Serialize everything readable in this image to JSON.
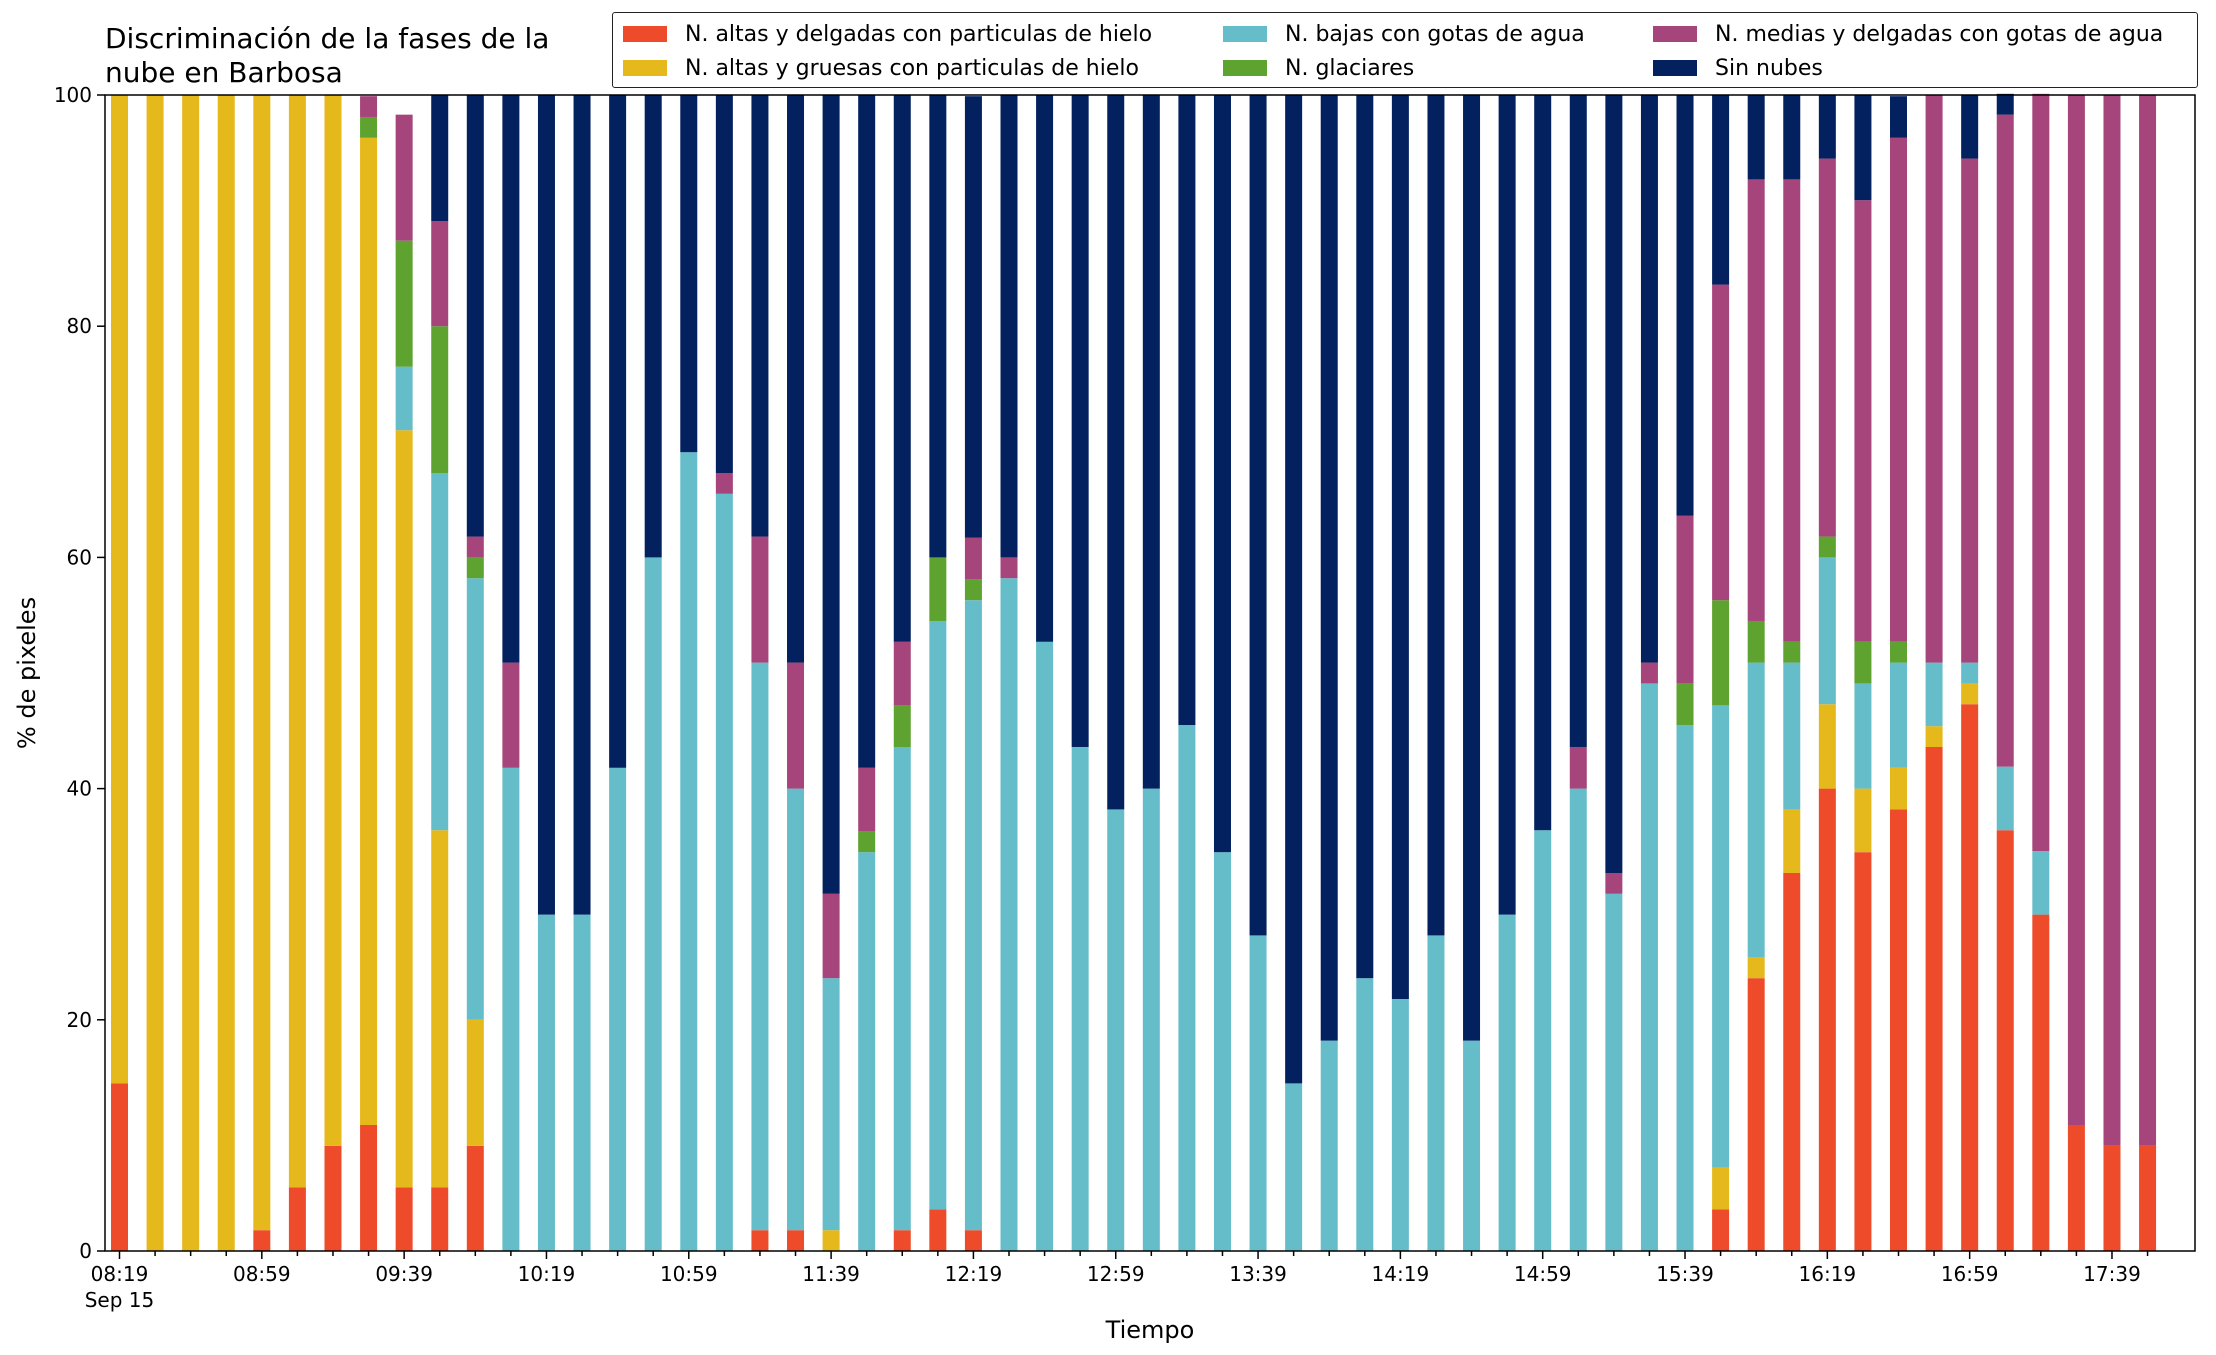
{
  "chart_data": {
    "type": "bar",
    "stacked": true,
    "title_lines": [
      "Discriminación de la fases de la",
      "nube en Barbosa"
    ],
    "xlabel": "Tiempo",
    "ylabel": "% de pixeles",
    "ylim": [
      0,
      100
    ],
    "yticks": [
      0,
      20,
      40,
      60,
      80,
      100
    ],
    "first_tick_sublabel": "Sep 15",
    "tick_labels": [
      "08:19",
      "08:59",
      "09:39",
      "10:19",
      "10:59",
      "11:39",
      "12:19",
      "12:59",
      "13:39",
      "14:19",
      "14:59",
      "15:39",
      "16:19",
      "16:59",
      "17:39"
    ],
    "grid": false,
    "legend_position": "top-right",
    "categories": [
      "08:19",
      "08:29",
      "08:39",
      "08:49",
      "08:59",
      "09:09",
      "09:19",
      "09:29",
      "09:39",
      "09:49",
      "09:59",
      "10:09",
      "10:19",
      "10:29",
      "10:39",
      "10:49",
      "10:59",
      "11:09",
      "11:19",
      "11:29",
      "11:39",
      "11:49",
      "11:59",
      "12:09",
      "12:19",
      "12:29",
      "12:39",
      "12:49",
      "12:59",
      "13:09",
      "13:19",
      "13:29",
      "13:39",
      "13:49",
      "13:59",
      "14:09",
      "14:19",
      "14:29",
      "14:39",
      "14:49",
      "14:59",
      "15:09",
      "15:19",
      "15:29",
      "15:39",
      "15:49",
      "15:59",
      "16:09",
      "16:19",
      "16:29",
      "16:39",
      "16:49",
      "16:59",
      "17:09",
      "17:19",
      "17:29",
      "17:39",
      "17:49"
    ],
    "series": [
      {
        "name": "N. altas y delgadas con particulas de hielo",
        "color": "#ee4b2b",
        "values": [
          14.5,
          0,
          0,
          0,
          1.8,
          5.5,
          9.1,
          10.9,
          5.5,
          5.5,
          9.1,
          0,
          0,
          0,
          0,
          0,
          0,
          0,
          1.8,
          1.8,
          0,
          0,
          1.8,
          3.6,
          1.8,
          0,
          0,
          0,
          0,
          0,
          0,
          0,
          0,
          0,
          0,
          0,
          0,
          0,
          0,
          0,
          0,
          0,
          0,
          0,
          0,
          3.6,
          23.6,
          32.7,
          40,
          34.5,
          38.2,
          43.6,
          47.3,
          36.4,
          29.1,
          10.9,
          9.1,
          9.1
        ]
      },
      {
        "name": "N. altas y gruesas con particulas de hielo",
        "color": "#e5b81b",
        "values": [
          85.5,
          100,
          100,
          100,
          98.2,
          94.5,
          90.9,
          85.4,
          65.5,
          30.9,
          10.9,
          0,
          0,
          0,
          0,
          0,
          0,
          0,
          0,
          0,
          1.8,
          0,
          0,
          0,
          0,
          0,
          0,
          0,
          0,
          0,
          0,
          0,
          0,
          0,
          0,
          0,
          0,
          0,
          0,
          0,
          0,
          0,
          0,
          0,
          0,
          3.6,
          1.8,
          5.5,
          7.3,
          5.5,
          3.6,
          1.8,
          1.8,
          0,
          0,
          0,
          0,
          0
        ]
      },
      {
        "name": "N. bajas con gotas de agua",
        "color": "#66bdca",
        "values": [
          0,
          0,
          0,
          0,
          0,
          0,
          0,
          0,
          5.5,
          30.9,
          38.2,
          41.8,
          29.1,
          29.1,
          41.8,
          60,
          69.1,
          65.5,
          49.1,
          38.2,
          21.8,
          34.5,
          41.8,
          50.9,
          54.5,
          58.2,
          52.7,
          43.6,
          38.2,
          40,
          45.5,
          34.5,
          27.3,
          14.5,
          18.2,
          23.6,
          21.8,
          27.3,
          18.2,
          29.1,
          36.4,
          40,
          30.9,
          49.1,
          45.5,
          40,
          25.5,
          12.7,
          12.7,
          9.1,
          9.1,
          5.5,
          1.8,
          5.5,
          5.5,
          0,
          0,
          0
        ]
      },
      {
        "name": "N. glaciares",
        "color": "#5ea22f",
        "values": [
          0,
          0,
          0,
          0,
          0,
          0,
          0,
          1.8,
          10.9,
          12.7,
          1.8,
          0,
          0,
          0,
          0,
          0,
          0,
          0,
          0,
          0,
          0,
          1.8,
          3.6,
          5.5,
          1.8,
          0,
          0,
          0,
          0,
          0,
          0,
          0,
          0,
          0,
          0,
          0,
          0,
          0,
          0,
          0,
          0,
          0,
          0,
          0,
          3.6,
          9.1,
          3.6,
          1.8,
          1.8,
          3.6,
          1.8,
          0,
          0,
          0,
          0,
          0,
          0,
          0
        ]
      },
      {
        "name": "N. medias y delgadas con gotas de agua",
        "color": "#a6457b",
        "values": [
          0,
          0,
          0,
          0,
          0,
          0,
          0,
          1.8,
          10.9,
          9.1,
          1.8,
          9.1,
          0,
          0,
          0,
          0,
          0,
          1.8,
          10.9,
          10.9,
          7.3,
          5.5,
          5.5,
          0,
          3.6,
          1.8,
          0,
          0,
          0,
          0,
          0,
          0,
          0,
          0,
          0,
          0,
          0,
          0,
          0,
          0,
          0,
          3.6,
          1.8,
          1.8,
          14.5,
          27.3,
          38.2,
          40,
          32.7,
          38.2,
          43.6,
          49.1,
          43.6,
          56.4,
          65.5,
          89.1,
          90.9,
          90.9
        ]
      },
      {
        "name": "Sin nubes",
        "color": "#03205f",
        "values": [
          0,
          0,
          0,
          0,
          0,
          0,
          0,
          0,
          0,
          10.9,
          38.2,
          49.1,
          70.9,
          70.9,
          58.2,
          40,
          30.9,
          32.7,
          38.2,
          49.1,
          69.1,
          58.2,
          47.3,
          40,
          38.2,
          40,
          47.3,
          56.4,
          61.8,
          60,
          54.5,
          65.5,
          72.7,
          85.5,
          81.8,
          76.4,
          78.2,
          72.7,
          81.8,
          70.9,
          63.6,
          56.4,
          67.3,
          49.1,
          36.4,
          16.4,
          7.3,
          7.3,
          5.5,
          9.1,
          3.6,
          0,
          5.5,
          1.8,
          0,
          0,
          0,
          0
        ]
      }
    ]
  }
}
